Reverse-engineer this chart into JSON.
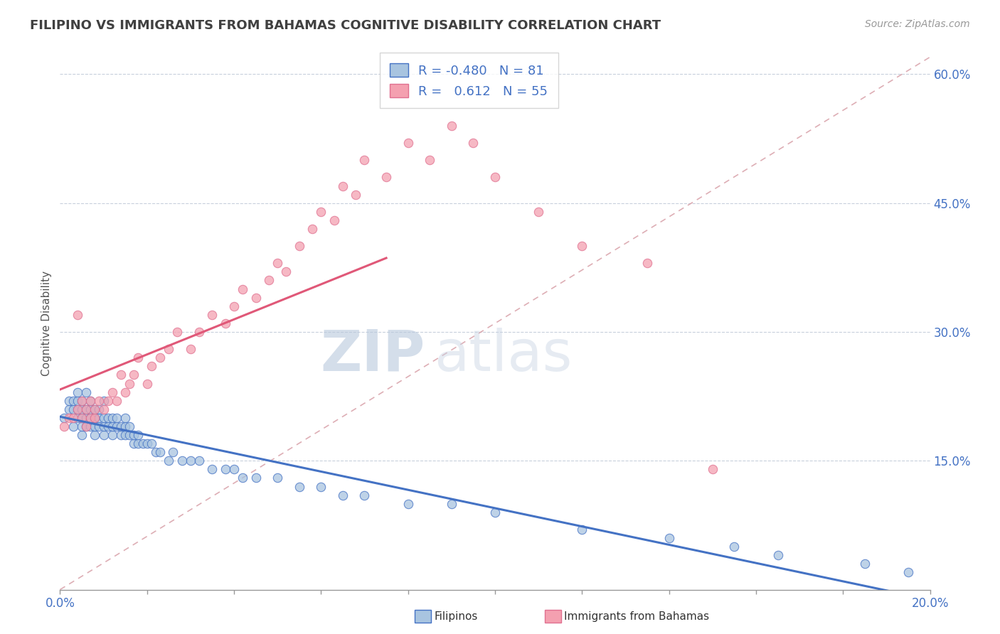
{
  "title": "FILIPINO VS IMMIGRANTS FROM BAHAMAS COGNITIVE DISABILITY CORRELATION CHART",
  "source": "Source: ZipAtlas.com",
  "ylabel": "Cognitive Disability",
  "xlim": [
    0.0,
    0.2
  ],
  "ylim": [
    0.0,
    0.62
  ],
  "y_ticks": [
    0.15,
    0.3,
    0.45,
    0.6
  ],
  "y_tick_labels": [
    "15.0%",
    "30.0%",
    "45.0%",
    "60.0%"
  ],
  "legend_r_filipino": "-0.480",
  "legend_n_filipino": "81",
  "legend_r_bahamas": "0.612",
  "legend_n_bahamas": "55",
  "color_filipino": "#a8c4e0",
  "color_filipino_edge": "#4472c4",
  "color_bahamas": "#f4a0b0",
  "color_bahamas_edge": "#e07090",
  "color_filipino_line": "#4472c4",
  "color_bahamas_line": "#e05878",
  "color_diagonal": "#d8a0a8",
  "color_axis_labels": "#4472c4",
  "color_title": "#404040",
  "watermark_zip": "ZIP",
  "watermark_atlas": "atlas",
  "filipino_x": [
    0.001,
    0.002,
    0.002,
    0.003,
    0.003,
    0.003,
    0.004,
    0.004,
    0.004,
    0.004,
    0.005,
    0.005,
    0.005,
    0.005,
    0.005,
    0.006,
    0.006,
    0.006,
    0.006,
    0.007,
    0.007,
    0.007,
    0.007,
    0.008,
    0.008,
    0.008,
    0.008,
    0.009,
    0.009,
    0.009,
    0.01,
    0.01,
    0.01,
    0.01,
    0.011,
    0.011,
    0.012,
    0.012,
    0.012,
    0.013,
    0.013,
    0.014,
    0.014,
    0.015,
    0.015,
    0.015,
    0.016,
    0.016,
    0.017,
    0.017,
    0.018,
    0.018,
    0.019,
    0.02,
    0.021,
    0.022,
    0.023,
    0.025,
    0.026,
    0.028,
    0.03,
    0.032,
    0.035,
    0.038,
    0.04,
    0.042,
    0.045,
    0.05,
    0.055,
    0.06,
    0.065,
    0.07,
    0.08,
    0.09,
    0.1,
    0.12,
    0.14,
    0.155,
    0.165,
    0.185,
    0.195
  ],
  "filipino_y": [
    0.2,
    0.21,
    0.22,
    0.19,
    0.21,
    0.22,
    0.2,
    0.21,
    0.22,
    0.23,
    0.18,
    0.19,
    0.2,
    0.21,
    0.22,
    0.19,
    0.2,
    0.21,
    0.23,
    0.19,
    0.2,
    0.21,
    0.22,
    0.18,
    0.19,
    0.2,
    0.21,
    0.19,
    0.2,
    0.21,
    0.18,
    0.19,
    0.2,
    0.22,
    0.19,
    0.2,
    0.18,
    0.19,
    0.2,
    0.19,
    0.2,
    0.18,
    0.19,
    0.18,
    0.19,
    0.2,
    0.18,
    0.19,
    0.17,
    0.18,
    0.17,
    0.18,
    0.17,
    0.17,
    0.17,
    0.16,
    0.16,
    0.15,
    0.16,
    0.15,
    0.15,
    0.15,
    0.14,
    0.14,
    0.14,
    0.13,
    0.13,
    0.13,
    0.12,
    0.12,
    0.11,
    0.11,
    0.1,
    0.1,
    0.09,
    0.07,
    0.06,
    0.05,
    0.04,
    0.03,
    0.02
  ],
  "bahamas_x": [
    0.001,
    0.002,
    0.003,
    0.004,
    0.004,
    0.005,
    0.005,
    0.006,
    0.006,
    0.007,
    0.007,
    0.008,
    0.008,
    0.009,
    0.01,
    0.011,
    0.012,
    0.013,
    0.014,
    0.015,
    0.016,
    0.017,
    0.018,
    0.02,
    0.021,
    0.023,
    0.025,
    0.027,
    0.03,
    0.032,
    0.035,
    0.038,
    0.04,
    0.042,
    0.045,
    0.048,
    0.05,
    0.052,
    0.055,
    0.058,
    0.06,
    0.063,
    0.065,
    0.068,
    0.07,
    0.075,
    0.08,
    0.085,
    0.09,
    0.095,
    0.1,
    0.11,
    0.12,
    0.135,
    0.15
  ],
  "bahamas_y": [
    0.19,
    0.2,
    0.2,
    0.21,
    0.32,
    0.2,
    0.22,
    0.19,
    0.21,
    0.2,
    0.22,
    0.2,
    0.21,
    0.22,
    0.21,
    0.22,
    0.23,
    0.22,
    0.25,
    0.23,
    0.24,
    0.25,
    0.27,
    0.24,
    0.26,
    0.27,
    0.28,
    0.3,
    0.28,
    0.3,
    0.32,
    0.31,
    0.33,
    0.35,
    0.34,
    0.36,
    0.38,
    0.37,
    0.4,
    0.42,
    0.44,
    0.43,
    0.47,
    0.46,
    0.5,
    0.48,
    0.52,
    0.5,
    0.54,
    0.52,
    0.48,
    0.44,
    0.4,
    0.38,
    0.14
  ]
}
